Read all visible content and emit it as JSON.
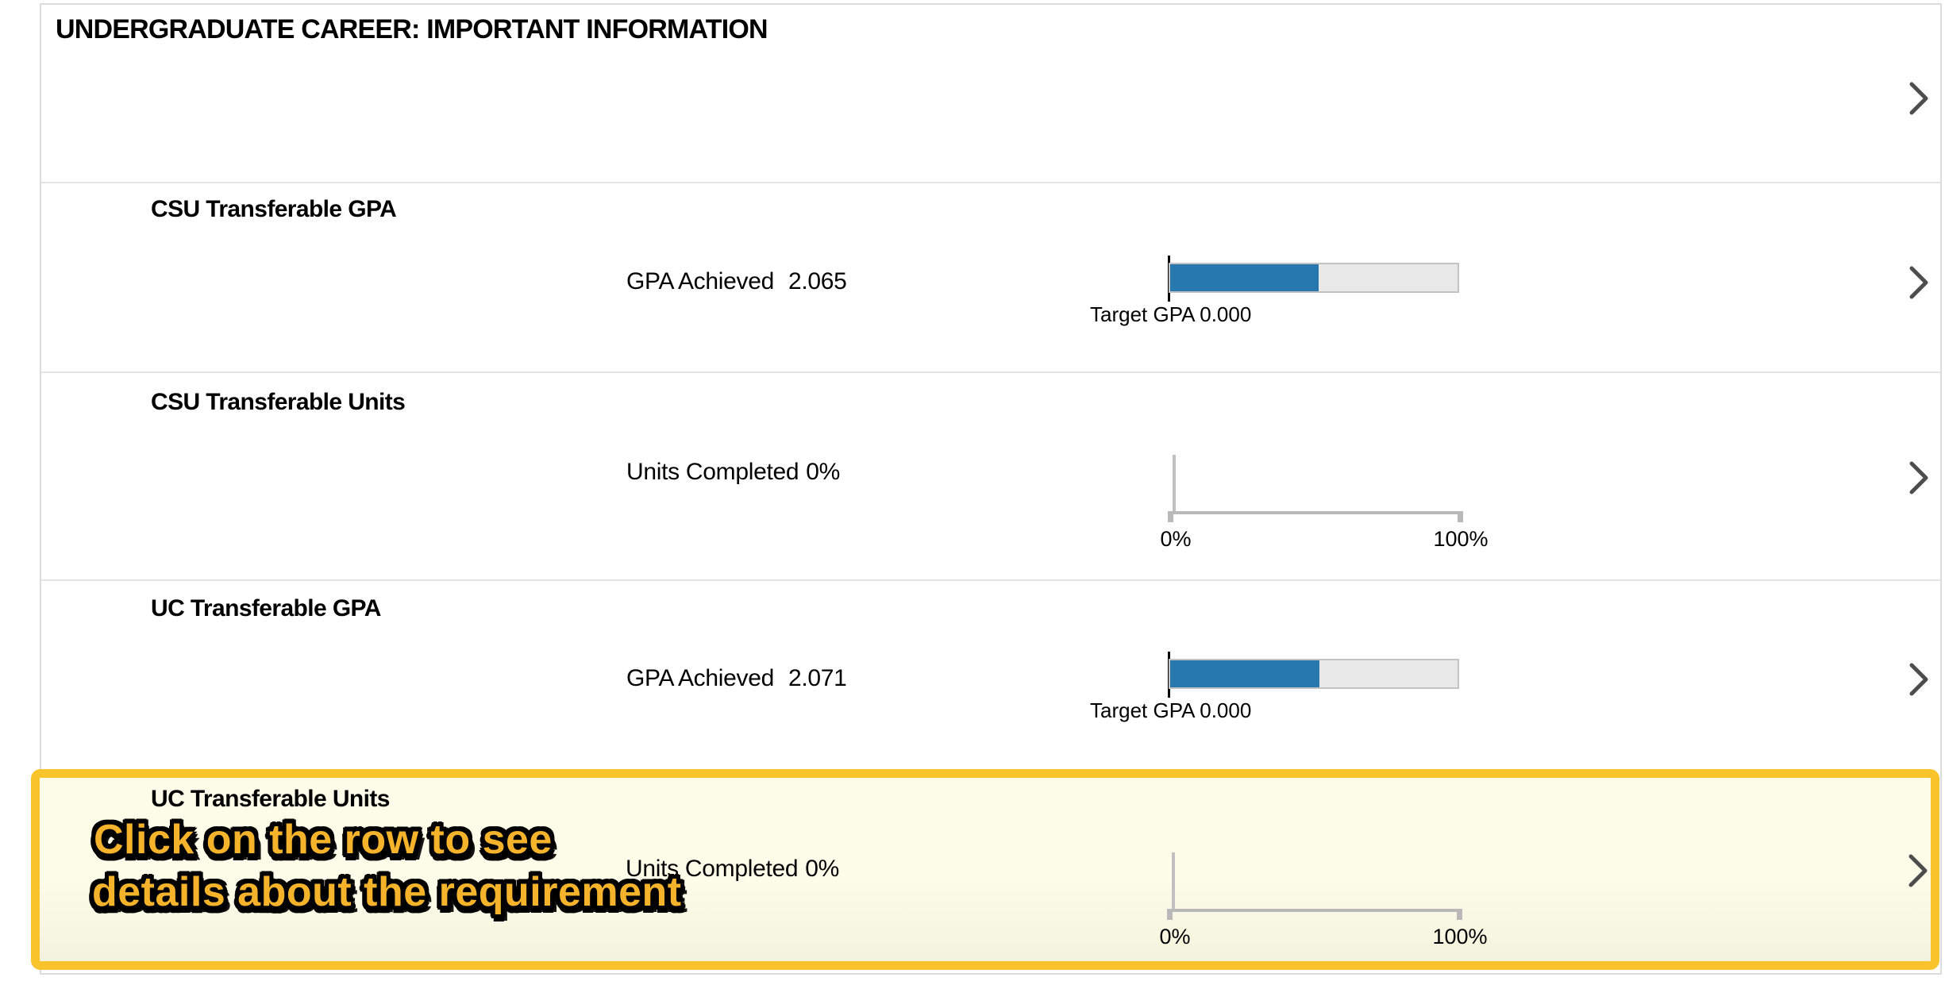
{
  "header": {
    "title": "UNDERGRADUATE CAREER: IMPORTANT INFORMATION"
  },
  "rows": [
    {
      "heading": "CSU Transferable GPA",
      "metric_label": "GPA Achieved",
      "metric_value": "2.065",
      "chart": {
        "type": "progress-bar",
        "achieved_gpa": 2.065,
        "target_gpa": 0.0,
        "target_label": "Target GPA 0.000",
        "fill_pct": 51.6,
        "fill_color": "#2878b0",
        "track_color": "#e8e8e8"
      }
    },
    {
      "heading": "CSU Transferable Units",
      "metric_label": "Units Completed",
      "metric_value": "0%",
      "chart": {
        "type": "percent-axis",
        "value_pct": 0,
        "tick_min": "0%",
        "tick_max": "100%"
      }
    },
    {
      "heading": "UC Transferable GPA",
      "metric_label": "GPA Achieved",
      "metric_value": "2.071",
      "chart": {
        "type": "progress-bar",
        "achieved_gpa": 2.071,
        "target_gpa": 0.0,
        "target_label": "Target GPA 0.000",
        "fill_pct": 51.8,
        "fill_color": "#2878b0",
        "track_color": "#e8e8e8"
      }
    },
    {
      "heading": "UC Transferable Units",
      "metric_label": "Units Completed",
      "metric_value": "0%",
      "highlighted": true,
      "chart": {
        "type": "percent-axis",
        "value_pct": 0,
        "tick_min": "0%",
        "tick_max": "100%"
      }
    }
  ],
  "annotation": {
    "line1": "Click on the row to see",
    "line2": "details about the requirement",
    "fill_color": "#f4b32a",
    "border_color": "#f9c32b"
  },
  "icons": {
    "row_action": "chevron-right"
  }
}
